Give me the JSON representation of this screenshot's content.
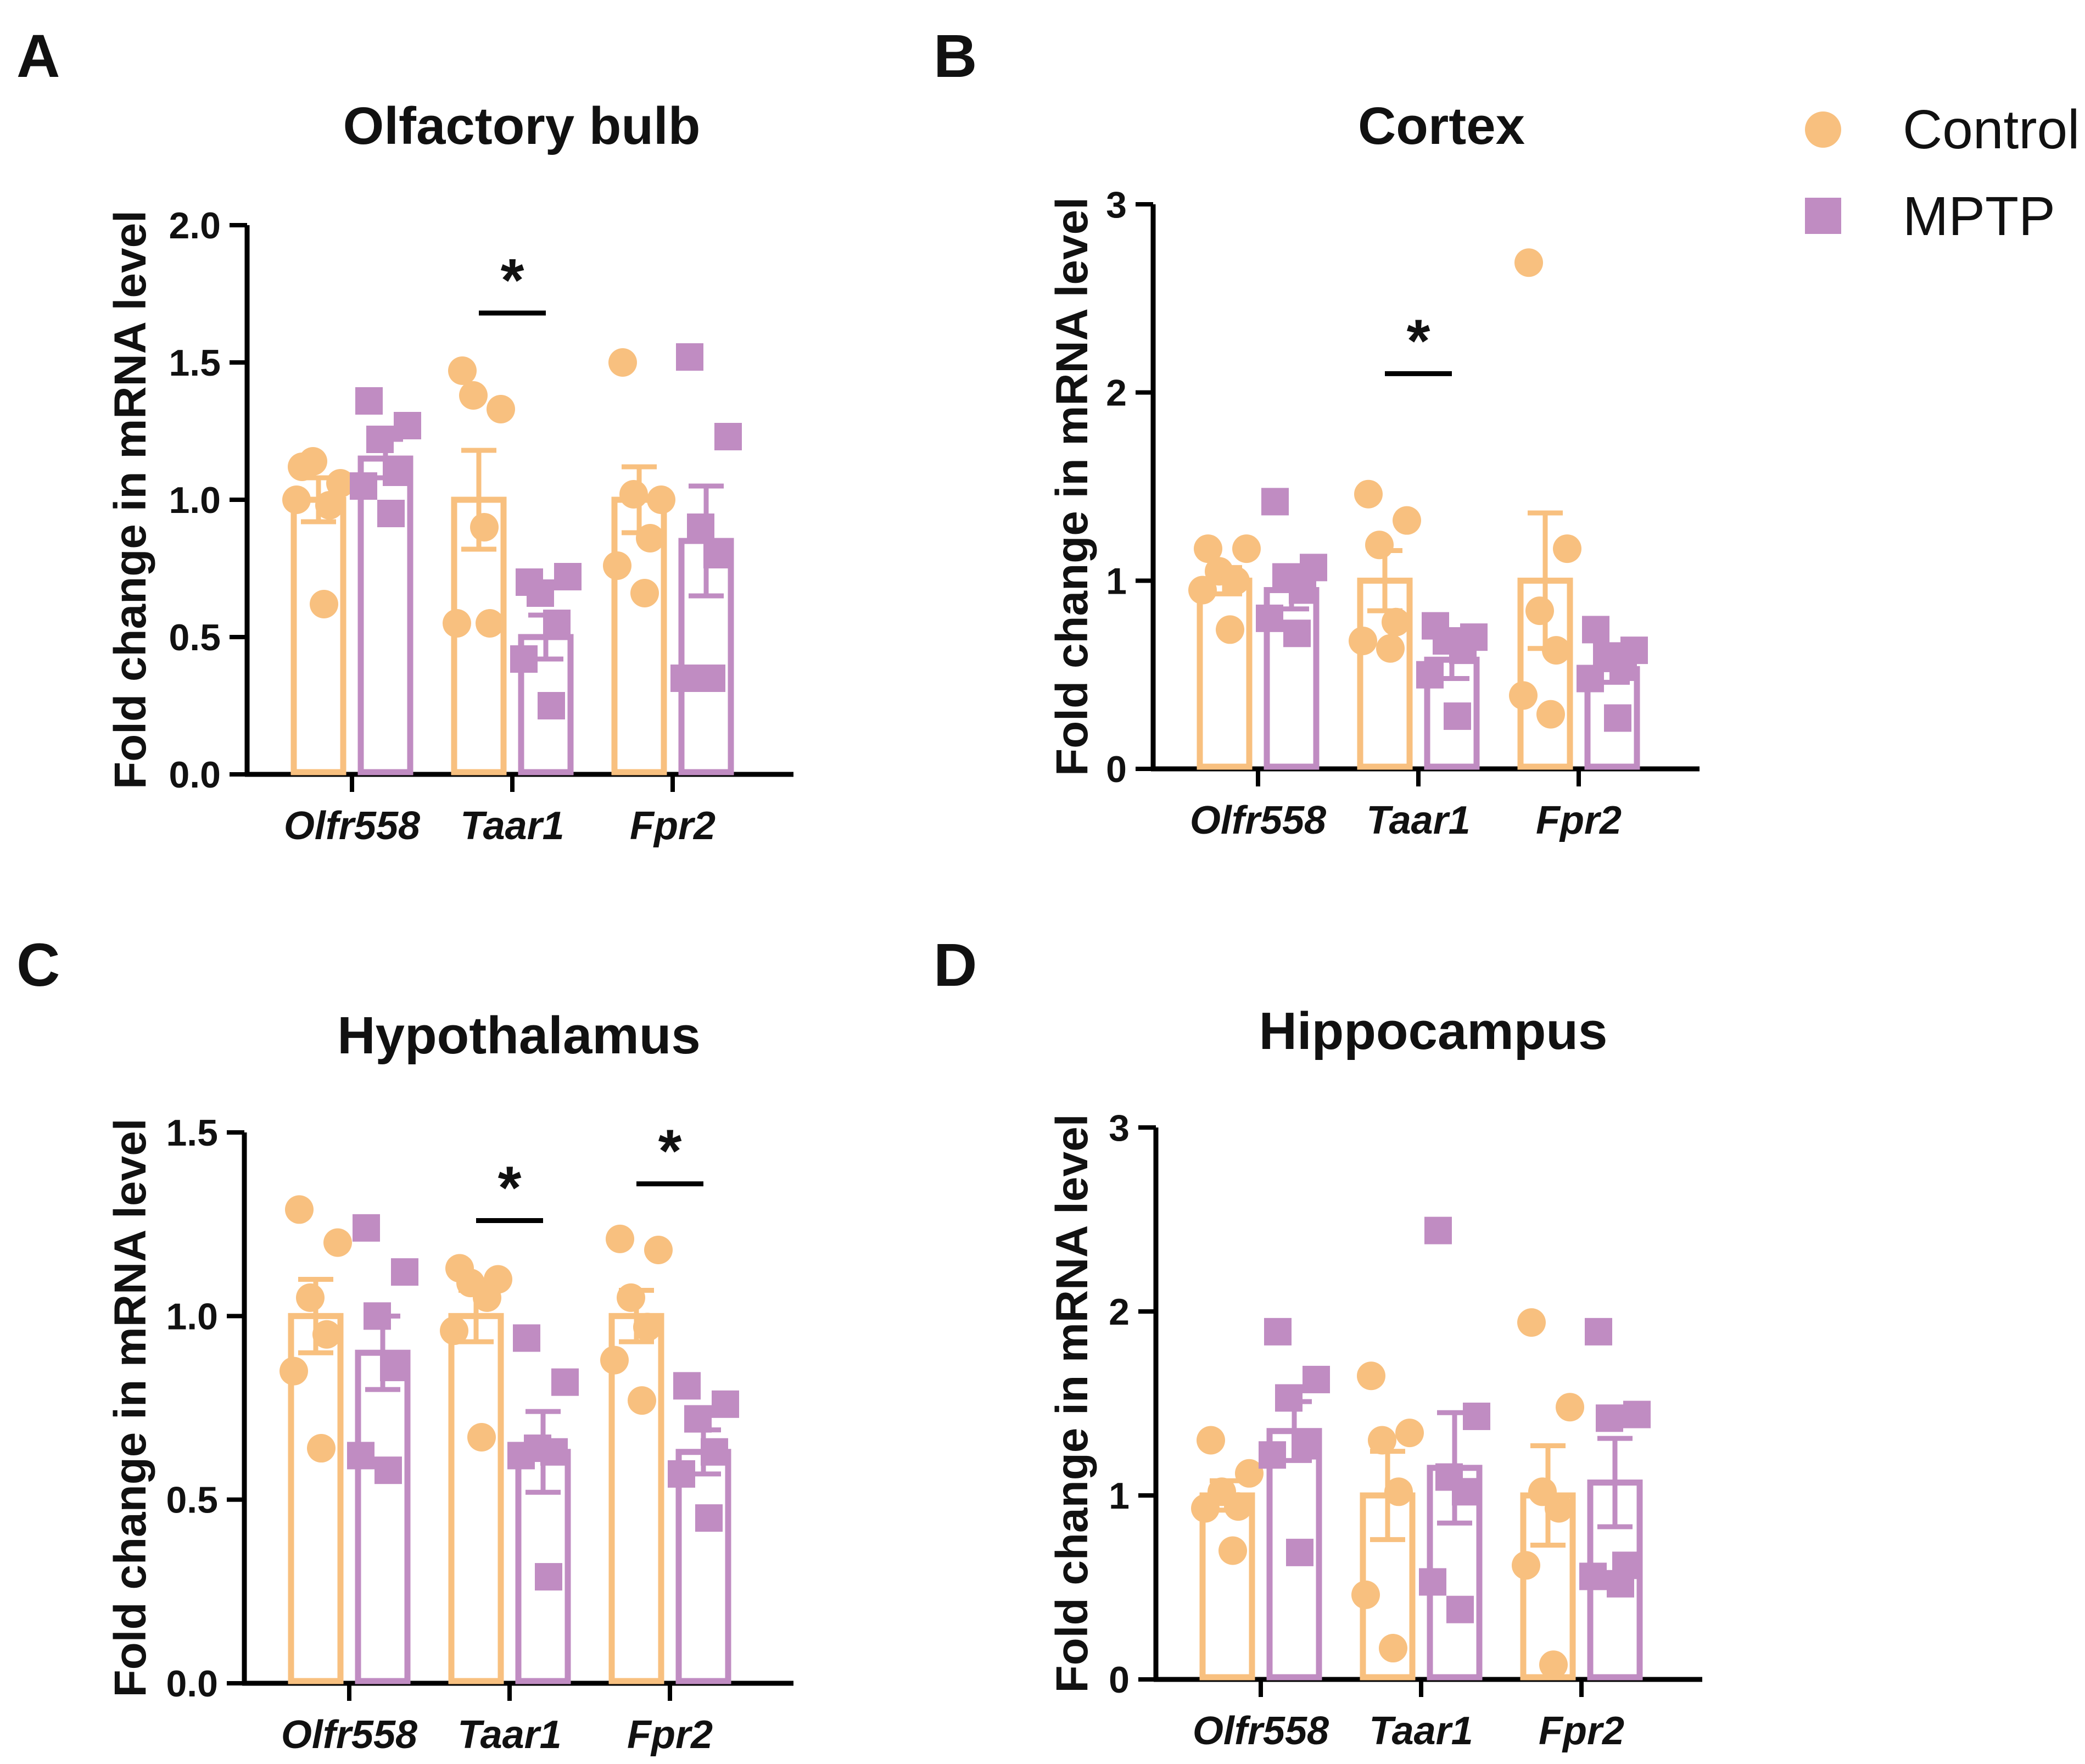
{
  "legend": {
    "entries": [
      {
        "label": "Control",
        "marker": "circle",
        "color": "#F8C07F"
      },
      {
        "label": "MPTP",
        "marker": "square",
        "color": "#C08CC2"
      }
    ]
  },
  "chart_data": [
    {
      "letter": "A",
      "type": "bar",
      "title": "Olfactory bulb",
      "ylabel": "Fold change in mRNA level",
      "ylim": [
        0,
        2.0
      ],
      "yticks": [
        0.0,
        0.5,
        1.0,
        1.5,
        2.0
      ],
      "yticklabels": [
        "0.0",
        "0.5",
        "1.0",
        "1.5",
        "2.0"
      ],
      "categories": [
        "Olfr558",
        "Taar1",
        "Fpr2"
      ],
      "series": [
        {
          "name": "Control",
          "values": [
            1.0,
            1.0,
            1.0
          ],
          "errors": [
            0.08,
            0.18,
            0.12
          ],
          "points": [
            [
              1.12,
              1.06,
              1.14,
              0.98,
              1.0,
              0.62
            ],
            [
              1.47,
              1.33,
              1.38,
              0.55,
              0.55,
              0.9
            ],
            [
              1.5,
              1.0,
              1.02,
              0.86,
              0.76,
              0.66
            ]
          ]
        },
        {
          "name": "MPTP",
          "values": [
            1.15,
            0.5,
            0.85
          ],
          "errors": [
            0.07,
            0.08,
            0.2
          ],
          "points": [
            [
              1.36,
              1.27,
              1.22,
              1.1,
              1.05,
              0.95
            ],
            [
              0.7,
              0.72,
              0.66,
              0.55,
              0.42,
              0.25
            ],
            [
              1.52,
              1.23,
              0.9,
              0.8,
              0.35,
              0.35
            ]
          ]
        }
      ],
      "significance": [
        {
          "category": "Taar1",
          "label": "*",
          "y": 1.68
        }
      ]
    },
    {
      "letter": "B",
      "type": "bar",
      "title": "Cortex",
      "ylabel": "Fold change in mRNA level",
      "ylim": [
        0,
        3
      ],
      "yticks": [
        0,
        1,
        2,
        3
      ],
      "yticklabels": [
        "0",
        "1",
        "2",
        "3"
      ],
      "categories": [
        "Olfr558",
        "Taar1",
        "Fpr2"
      ],
      "series": [
        {
          "name": "Control",
          "values": [
            1.0,
            1.0,
            1.0
          ],
          "errors": [
            0.07,
            0.16,
            0.36
          ],
          "points": [
            [
              1.17,
              1.17,
              1.05,
              1.0,
              0.95,
              0.74
            ],
            [
              1.46,
              1.32,
              1.19,
              0.78,
              0.68,
              0.64
            ],
            [
              2.69,
              1.17,
              0.84,
              0.63,
              0.39,
              0.29
            ]
          ]
        },
        {
          "name": "MPTP",
          "values": [
            0.95,
            0.58,
            0.53
          ],
          "errors": [
            0.1,
            0.1,
            0.07
          ],
          "points": [
            [
              1.42,
              1.07,
              1.02,
              0.95,
              0.8,
              0.72
            ],
            [
              0.76,
              0.7,
              0.68,
              0.63,
              0.5,
              0.28
            ],
            [
              0.74,
              0.63,
              0.6,
              0.54,
              0.48,
              0.27
            ]
          ]
        }
      ],
      "significance": [
        {
          "category": "Taar1",
          "label": "*",
          "y": 2.1
        }
      ]
    },
    {
      "letter": "C",
      "type": "bar",
      "title": "Hypothalamus",
      "ylabel": "Fold change in mRNA level",
      "ylim": [
        0,
        1.5
      ],
      "yticks": [
        0.0,
        0.5,
        1.0,
        1.5
      ],
      "yticklabels": [
        "0.0",
        "0.5",
        "1.0",
        "1.5"
      ],
      "categories": [
        "Olfr558",
        "Taar1",
        "Fpr2"
      ],
      "series": [
        {
          "name": "Control",
          "values": [
            1.0,
            1.0,
            1.0
          ],
          "errors": [
            0.1,
            0.07,
            0.07
          ],
          "points": [
            [
              1.29,
              1.2,
              1.05,
              0.95,
              0.85,
              0.64
            ],
            [
              1.13,
              1.1,
              1.09,
              1.05,
              0.96,
              0.67
            ],
            [
              1.21,
              1.18,
              1.05,
              0.97,
              0.88,
              0.77
            ]
          ]
        },
        {
          "name": "MPTP",
          "values": [
            0.9,
            0.63,
            0.63
          ],
          "errors": [
            0.1,
            0.11,
            0.06
          ],
          "points": [
            [
              1.24,
              1.12,
              1.0,
              0.86,
              0.62,
              0.58
            ],
            [
              0.94,
              0.82,
              0.64,
              0.63,
              0.62,
              0.29
            ],
            [
              0.81,
              0.76,
              0.72,
              0.63,
              0.57,
              0.45
            ]
          ]
        }
      ],
      "significance": [
        {
          "category": "Taar1",
          "label": "*",
          "y": 1.26
        },
        {
          "category": "Fpr2",
          "label": "*",
          "y": 1.36
        }
      ]
    },
    {
      "letter": "D",
      "type": "bar",
      "title": "Hippocampus",
      "ylabel": "Fold change in mRNA level",
      "ylim": [
        0,
        3
      ],
      "yticks": [
        0,
        1,
        2,
        3
      ],
      "yticklabels": [
        "0",
        "1",
        "2",
        "3"
      ],
      "categories": [
        "Olfr558",
        "Taar1",
        "Fpr2"
      ],
      "series": [
        {
          "name": "Control",
          "values": [
            1.0,
            1.0,
            1.0
          ],
          "errors": [
            0.08,
            0.24,
            0.27
          ],
          "points": [
            [
              1.3,
              1.12,
              1.02,
              0.94,
              0.93,
              0.7
            ],
            [
              1.65,
              1.34,
              1.3,
              1.02,
              0.46,
              0.17
            ],
            [
              1.94,
              1.48,
              1.02,
              0.93,
              0.62,
              0.08
            ]
          ]
        },
        {
          "name": "MPTP",
          "values": [
            1.35,
            1.15,
            1.07
          ],
          "errors": [
            0.16,
            0.3,
            0.24
          ],
          "points": [
            [
              1.89,
              1.63,
              1.53,
              1.27,
              1.22,
              0.69
            ],
            [
              2.44,
              1.43,
              1.1,
              1.02,
              0.53,
              0.38
            ],
            [
              1.89,
              1.44,
              1.42,
              0.62,
              0.56,
              0.52
            ]
          ]
        }
      ],
      "significance": []
    }
  ]
}
